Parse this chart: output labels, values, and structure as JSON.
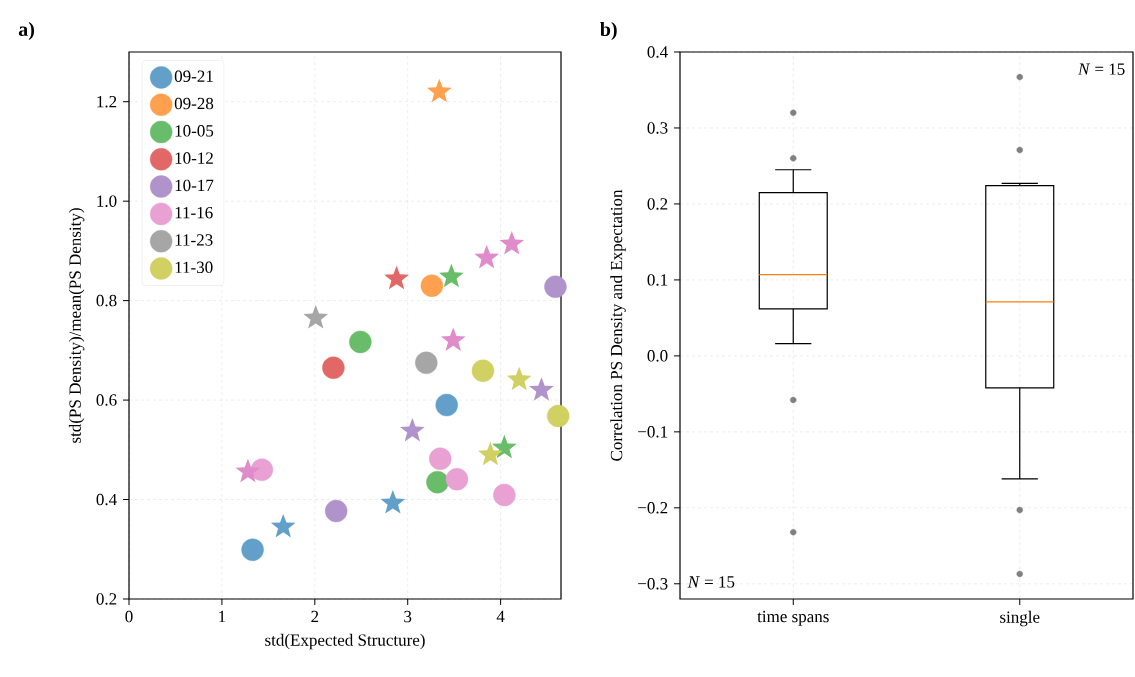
{
  "chart_data": [
    {
      "type": "scatter",
      "title": "a)",
      "xlabel": "std(Expected Structure)",
      "ylabel": "std(PS Density)/mean(PS Density)",
      "xlim": [
        0,
        4.65
      ],
      "ylim": [
        0.2,
        1.3
      ],
      "xticks": [
        0,
        1,
        2,
        3,
        4
      ],
      "yticks": [
        0.2,
        0.4,
        0.6,
        0.8,
        {
          "value": 1.0,
          "label": "1.0"
        },
        1.2
      ],
      "grid": true,
      "legend": "top left",
      "series": [
        {
          "name": "09-21",
          "color": "#62a0ca",
          "marker": "circle",
          "x": [
            1.33,
            3.42
          ],
          "values": [
            0.299,
            0.59
          ]
        },
        {
          "name": "09-28",
          "color": "#ffa04f",
          "marker": "circle",
          "x": [
            3.26
          ],
          "values": [
            0.83
          ]
        },
        {
          "name": "10-05",
          "color": "#69bc69",
          "marker": "circle",
          "x": [
            2.49,
            3.32
          ],
          "values": [
            0.717,
            0.435
          ]
        },
        {
          "name": "10-12",
          "color": "#e26868",
          "marker": "circle",
          "x": [
            2.2
          ],
          "values": [
            0.665
          ]
        },
        {
          "name": "10-17",
          "color": "#b193cc",
          "marker": "circle",
          "x": [
            4.59,
            2.23
          ],
          "values": [
            0.828,
            0.377
          ]
        },
        {
          "name": "11-16",
          "color": "#e9a0d3",
          "marker": "circle",
          "x": [
            1.43,
            3.35,
            3.53,
            4.04
          ],
          "values": [
            0.46,
            0.482,
            0.441,
            0.409
          ]
        },
        {
          "name": "11-23",
          "color": "#a6a6a6",
          "marker": "circle",
          "x": [
            3.2
          ],
          "values": [
            0.675
          ]
        },
        {
          "name": "11-30",
          "color": "#d0d063",
          "marker": "circle",
          "x": [
            3.81,
            4.62
          ],
          "values": [
            0.659,
            0.568
          ]
        },
        {
          "color": "#62a0ca",
          "marker": "star",
          "x": [
            1.66,
            2.84
          ],
          "values": [
            0.345,
            0.393
          ]
        },
        {
          "color": "#ffa04f",
          "marker": "star",
          "x": [
            3.34
          ],
          "values": [
            1.22
          ]
        },
        {
          "color": "#69bc69",
          "marker": "star",
          "x": [
            3.47,
            4.04
          ],
          "values": [
            0.848,
            0.504
          ]
        },
        {
          "color": "#e26868",
          "marker": "star",
          "x": [
            2.88
          ],
          "values": [
            0.844
          ]
        },
        {
          "color": "#b193cc",
          "marker": "star",
          "x": [
            3.05,
            4.44
          ],
          "values": [
            0.538,
            0.62
          ]
        },
        {
          "color": "#e08ccb",
          "marker": "star",
          "x": [
            3.85,
            4.12,
            3.49,
            1.28
          ],
          "values": [
            0.886,
            0.914,
            0.72,
            0.456
          ]
        },
        {
          "color": "#a6a6a6",
          "marker": "star",
          "x": [
            2.01
          ],
          "values": [
            0.765
          ]
        },
        {
          "color": "#d0d063",
          "marker": "star",
          "x": [
            4.2,
            3.89
          ],
          "values": [
            0.641,
            0.49
          ]
        }
      ]
    },
    {
      "type": "box",
      "title": "b)",
      "ylabel": "Correlation PS Density and Expectation",
      "categories": [
        "time spans",
        "single"
      ],
      "ylim": [
        -0.32,
        0.4
      ],
      "yticks": [
        {
          "value": -0.3,
          "label": "−0.3"
        },
        {
          "value": -0.2,
          "label": "−0.2"
        },
        {
          "value": -0.1,
          "label": "−0.1"
        },
        {
          "value": 0,
          "label": "0.0"
        },
        0.1,
        0.2,
        0.3,
        0.4
      ],
      "grid": true,
      "boxes": [
        {
          "low": 0.016,
          "q1": 0.062,
          "median": 0.107,
          "q3": 0.215,
          "high": 0.245,
          "outliers": [
            0.32,
            0.26,
            -0.058,
            -0.232
          ]
        },
        {
          "low": -0.162,
          "q1": -0.042,
          "median": 0.071,
          "q3": 0.224,
          "high": 0.227,
          "outliers": [
            0.367,
            0.271,
            -0.203,
            -0.287
          ]
        }
      ],
      "annotations": [
        "*N* = 15",
        "*N* = 15"
      ]
    }
  ]
}
